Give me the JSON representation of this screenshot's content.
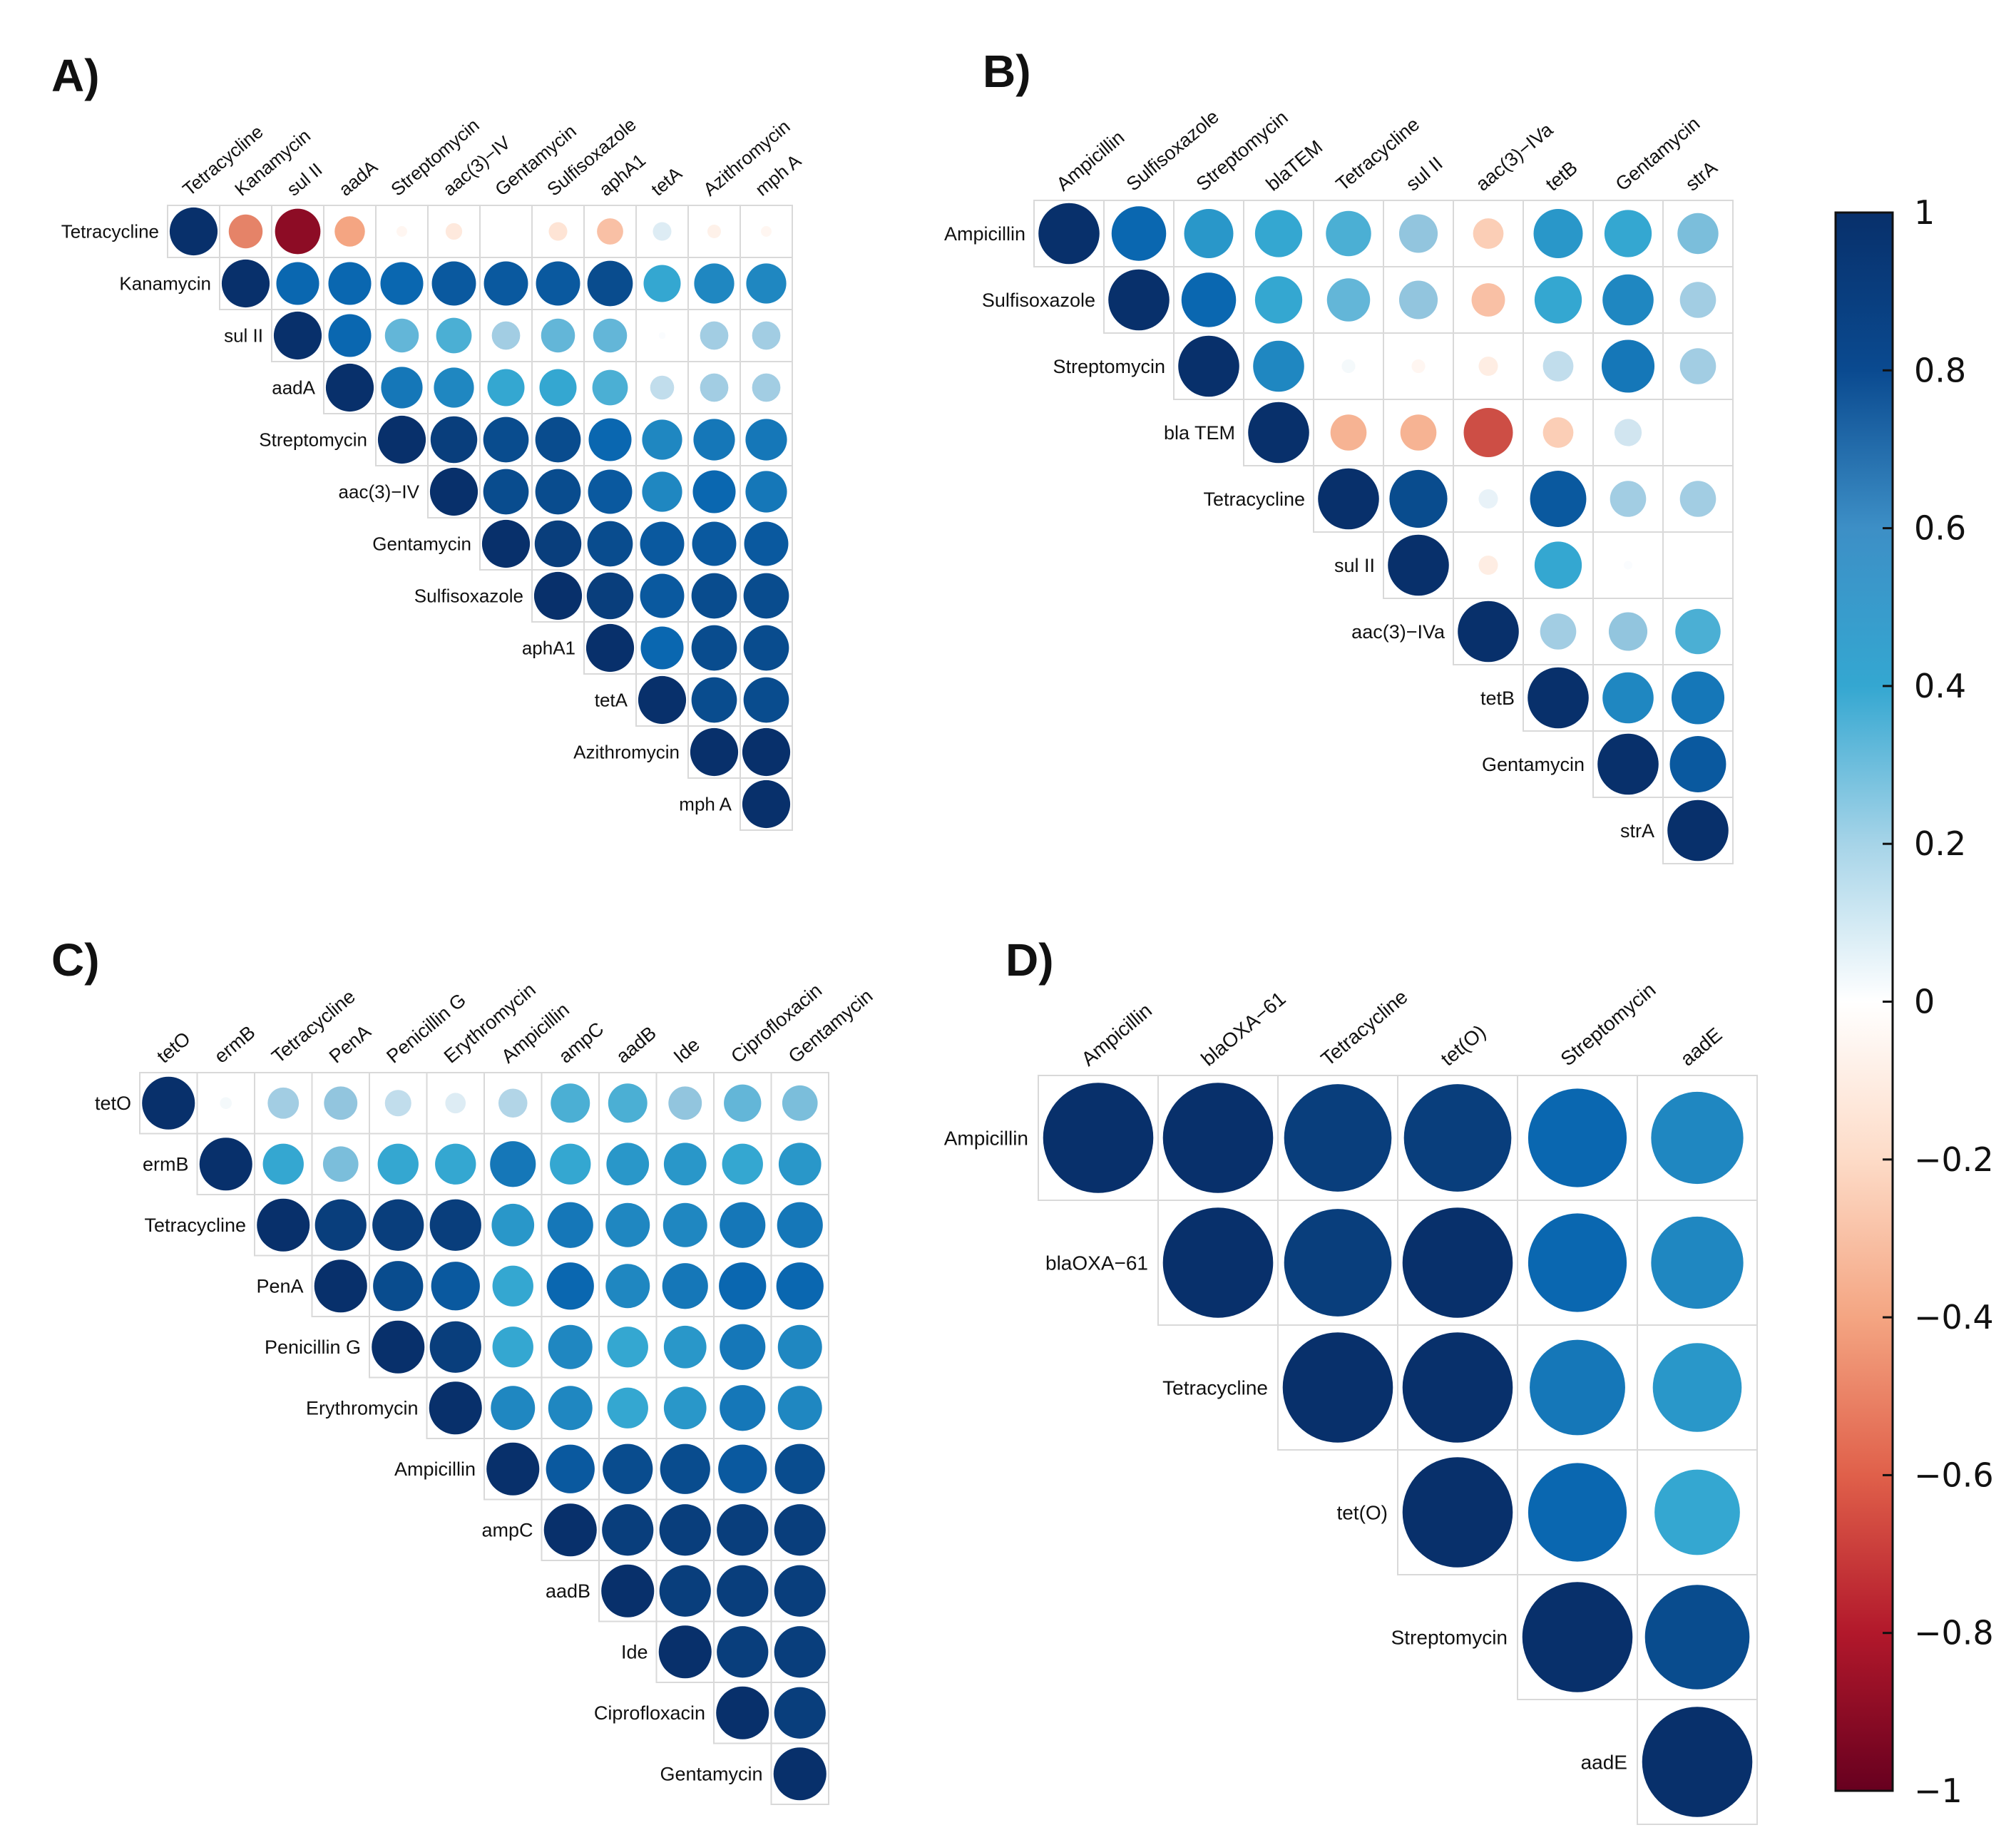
{
  "chart_data": [
    {
      "type": "heatmap",
      "panel": "A)",
      "variables": [
        "Tetracycline",
        "Kanamycin",
        "sul II",
        "aadA",
        "Streptomycin",
        "aac(3)−IV",
        "Gentamycin",
        "Sulfisoxazole",
        "aphA1",
        "tetA",
        "Azithromycin",
        "mph A"
      ],
      "matrix": [
        [
          1.0,
          -0.5,
          -0.9,
          -0.4,
          -0.05,
          -0.12,
          0.0,
          -0.15,
          -0.3,
          0.15,
          -0.08,
          -0.05
        ],
        [
          null,
          1.0,
          0.8,
          0.8,
          0.8,
          0.85,
          0.85,
          0.85,
          0.9,
          0.6,
          0.7,
          0.7
        ],
        [
          null,
          null,
          1.0,
          0.8,
          0.5,
          0.55,
          0.35,
          0.5,
          0.5,
          0.02,
          0.35,
          0.35
        ],
        [
          null,
          null,
          null,
          1.0,
          0.75,
          0.7,
          0.6,
          0.6,
          0.55,
          0.25,
          0.35,
          0.35
        ],
        [
          null,
          null,
          null,
          null,
          1.0,
          0.95,
          0.9,
          0.9,
          0.8,
          0.7,
          0.75,
          0.75
        ],
        [
          null,
          null,
          null,
          null,
          null,
          1.0,
          0.9,
          0.9,
          0.85,
          0.7,
          0.8,
          0.75
        ],
        [
          null,
          null,
          null,
          null,
          null,
          null,
          1.0,
          0.95,
          0.9,
          0.85,
          0.85,
          0.85
        ],
        [
          null,
          null,
          null,
          null,
          null,
          null,
          null,
          1.0,
          0.95,
          0.85,
          0.9,
          0.9
        ],
        [
          null,
          null,
          null,
          null,
          null,
          null,
          null,
          null,
          1.0,
          0.8,
          0.9,
          0.9
        ],
        [
          null,
          null,
          null,
          null,
          null,
          null,
          null,
          null,
          null,
          1.0,
          0.9,
          0.9
        ],
        [
          null,
          null,
          null,
          null,
          null,
          null,
          null,
          null,
          null,
          null,
          1.0,
          1.0
        ],
        [
          null,
          null,
          null,
          null,
          null,
          null,
          null,
          null,
          null,
          null,
          null,
          1.0
        ]
      ]
    },
    {
      "type": "heatmap",
      "panel": "B)",
      "variables": [
        "Ampicillin",
        "Sulfisoxazole",
        "Streptomycin",
        "blaTEM",
        "Tetracycline",
        "sul II",
        "aac(3)−IVa",
        "tetB",
        "Gentamycin",
        "strA"
      ],
      "row_labels": [
        "Ampicillin",
        "Sulfisoxazole",
        "Streptomycin",
        "bla TEM",
        "Tetracycline",
        "sul II",
        "aac(3)−IVa",
        "tetB",
        "Gentamycin",
        "strA"
      ],
      "matrix": [
        [
          1.0,
          0.8,
          0.65,
          0.6,
          0.55,
          0.4,
          -0.25,
          0.65,
          0.6,
          0.45
        ],
        [
          null,
          1.0,
          0.8,
          0.6,
          0.5,
          0.4,
          -0.3,
          0.6,
          0.7,
          0.35
        ],
        [
          null,
          null,
          1.0,
          0.7,
          0.05,
          -0.05,
          -0.1,
          0.25,
          0.75,
          0.35
        ],
        [
          null,
          null,
          null,
          1.0,
          -0.35,
          -0.35,
          -0.65,
          -0.25,
          0.2,
          0.0
        ],
        [
          null,
          null,
          null,
          null,
          1.0,
          0.9,
          0.1,
          0.85,
          0.35,
          0.35
        ],
        [
          null,
          null,
          null,
          null,
          null,
          1.0,
          -0.1,
          0.6,
          0.02,
          0.0
        ],
        [
          null,
          null,
          null,
          null,
          null,
          null,
          1.0,
          0.35,
          0.4,
          0.55
        ],
        [
          null,
          null,
          null,
          null,
          null,
          null,
          null,
          1.0,
          0.7,
          0.75
        ],
        [
          null,
          null,
          null,
          null,
          null,
          null,
          null,
          null,
          1.0,
          0.85
        ],
        [
          null,
          null,
          null,
          null,
          null,
          null,
          null,
          null,
          null,
          1.0
        ]
      ]
    },
    {
      "type": "heatmap",
      "panel": "C)",
      "variables": [
        "tetO",
        "ermB",
        "Tetracycline",
        "PenA",
        "Penicillin G",
        "Erythromycin",
        "Ampicillin",
        "ampC",
        "aadB",
        "Ide",
        "Ciprofloxacin",
        "Gentamycin"
      ],
      "matrix": [
        [
          1.0,
          0.05,
          0.35,
          0.4,
          0.25,
          0.15,
          0.3,
          0.55,
          0.55,
          0.4,
          0.5,
          0.45
        ],
        [
          null,
          1.0,
          0.6,
          0.45,
          0.6,
          0.6,
          0.75,
          0.6,
          0.65,
          0.65,
          0.6,
          0.65
        ],
        [
          null,
          null,
          1.0,
          0.95,
          0.95,
          0.95,
          0.65,
          0.75,
          0.7,
          0.7,
          0.75,
          0.75
        ],
        [
          null,
          null,
          null,
          1.0,
          0.9,
          0.85,
          0.6,
          0.8,
          0.7,
          0.75,
          0.8,
          0.8
        ],
        [
          null,
          null,
          null,
          null,
          1.0,
          0.95,
          0.6,
          0.7,
          0.6,
          0.65,
          0.75,
          0.7
        ],
        [
          null,
          null,
          null,
          null,
          null,
          1.0,
          0.7,
          0.7,
          0.6,
          0.65,
          0.75,
          0.7
        ],
        [
          null,
          null,
          null,
          null,
          null,
          null,
          1.0,
          0.85,
          0.9,
          0.9,
          0.85,
          0.9
        ],
        [
          null,
          null,
          null,
          null,
          null,
          null,
          null,
          1.0,
          0.95,
          0.95,
          0.95,
          0.95
        ],
        [
          null,
          null,
          null,
          null,
          null,
          null,
          null,
          null,
          1.0,
          0.95,
          0.95,
          0.95
        ],
        [
          null,
          null,
          null,
          null,
          null,
          null,
          null,
          null,
          null,
          1.0,
          0.95,
          0.95
        ],
        [
          null,
          null,
          null,
          null,
          null,
          null,
          null,
          null,
          null,
          null,
          1.0,
          0.95
        ],
        [
          null,
          null,
          null,
          null,
          null,
          null,
          null,
          null,
          null,
          null,
          null,
          1.0
        ]
      ]
    },
    {
      "type": "heatmap",
      "panel": "D)",
      "variables": [
        "Ampicillin",
        "blaOXA−61",
        "Tetracycline",
        "tet(O)",
        "Streptomycin",
        "aadE"
      ],
      "matrix": [
        [
          1.0,
          1.0,
          0.95,
          0.95,
          0.8,
          0.7
        ],
        [
          null,
          1.0,
          0.95,
          1.0,
          0.8,
          0.7
        ],
        [
          null,
          null,
          1.0,
          1.0,
          0.75,
          0.65
        ],
        [
          null,
          null,
          null,
          1.0,
          0.8,
          0.6
        ],
        [
          null,
          null,
          null,
          null,
          1.0,
          0.9
        ],
        [
          null,
          null,
          null,
          null,
          null,
          1.0
        ]
      ]
    }
  ],
  "colorbar": {
    "range": [
      -1,
      1
    ],
    "ticks": [
      "1",
      "0.8",
      "0.6",
      "0.4",
      "0.2",
      "0",
      "−0.2",
      "−0.4",
      "−0.6",
      "−0.8",
      "−1"
    ],
    "tick_values": [
      1,
      0.8,
      0.6,
      0.4,
      0.2,
      0,
      -0.2,
      -0.4,
      -0.6,
      -0.8,
      -1
    ],
    "colors": {
      "neg_end": "#67001f",
      "neg_2": "#b2182b",
      "neg_3": "#d6604d",
      "neg_4": "#f4a582",
      "neg_5": "#fddbc7",
      "mid": "#ffffff",
      "pos_5": "#d1e5f0",
      "pos_4": "#92c5de",
      "pos_3": "#34a7d1",
      "pos_2": "#0a67b0",
      "pos_end": "#08306b"
    }
  }
}
